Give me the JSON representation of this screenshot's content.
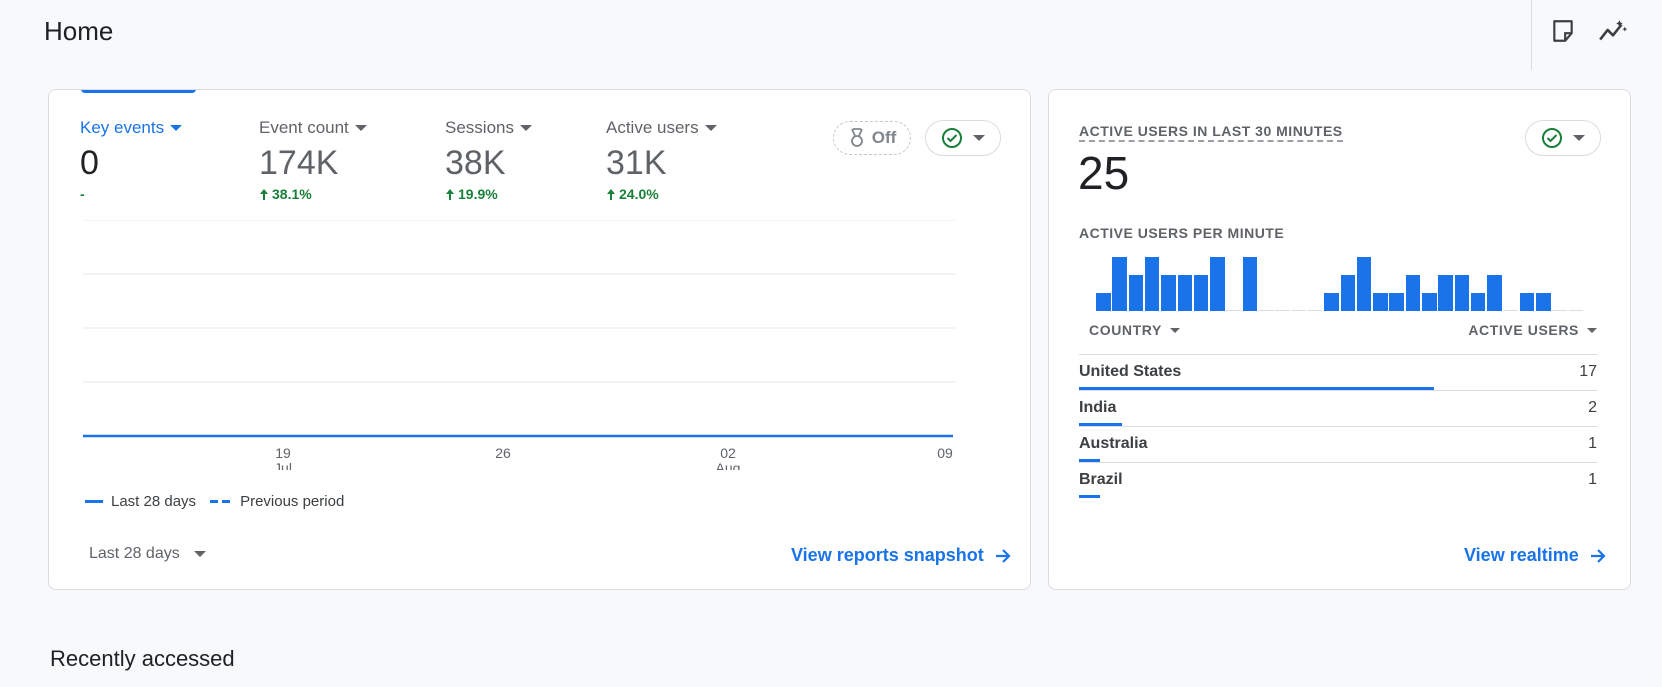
{
  "page": {
    "title": "Home",
    "section_title": "Recently accessed"
  },
  "header_icons": [
    {
      "name": "insights-note-icon"
    },
    {
      "name": "sparkle-insights-icon"
    }
  ],
  "metrics": [
    {
      "label": "Key events",
      "value": "0",
      "change": "-",
      "active": true
    },
    {
      "label": "Event count",
      "value": "174K",
      "change": "38.1%",
      "active": false
    },
    {
      "label": "Sessions",
      "value": "38K",
      "change": "19.9%",
      "active": false
    },
    {
      "label": "Active users",
      "value": "31K",
      "change": "24.0%",
      "active": false
    }
  ],
  "off_chip": {
    "label": "Off",
    "icon": "medal-icon"
  },
  "chart": {
    "x_ticks": [
      {
        "day": "19",
        "month": "Jul"
      },
      {
        "day": "26",
        "month": ""
      },
      {
        "day": "02",
        "month": "Aug"
      },
      {
        "day": "09",
        "month": ""
      }
    ],
    "legend": {
      "current": "Last 28 days",
      "previous": "Previous period"
    },
    "accent": "#1a73e8"
  },
  "chart_data": {
    "type": "line",
    "x": [
      "19 Jul",
      "26",
      "02 Aug",
      "09"
    ],
    "series": [
      {
        "name": "Last 28 days",
        "values": [
          0,
          0,
          0,
          0
        ]
      }
    ],
    "ylim": [
      0,
      4
    ]
  },
  "date_range": {
    "label": "Last 28 days"
  },
  "links": {
    "reports": "View reports snapshot",
    "realtime": "View realtime"
  },
  "realtime": {
    "title": "ACTIVE USERS IN LAST 30 MINUTES",
    "count": "25",
    "per_minute_title": "ACTIVE USERS PER MINUTE",
    "per_minute": [
      1,
      3,
      2,
      3,
      2,
      2,
      2,
      3,
      0,
      3,
      0,
      0,
      0,
      0,
      1,
      2,
      3,
      1,
      1,
      2,
      1,
      2,
      2,
      1,
      2,
      0,
      1,
      1,
      0,
      0
    ],
    "col_country": "COUNTRY",
    "col_users": "ACTIVE USERS",
    "rows": [
      {
        "country": "United States",
        "users": "17",
        "share": 1.0
      },
      {
        "country": "India",
        "users": "2",
        "share": 0.12
      },
      {
        "country": "Australia",
        "users": "1",
        "share": 0.06
      },
      {
        "country": "Brazil",
        "users": "1",
        "share": 0.06
      }
    ]
  }
}
